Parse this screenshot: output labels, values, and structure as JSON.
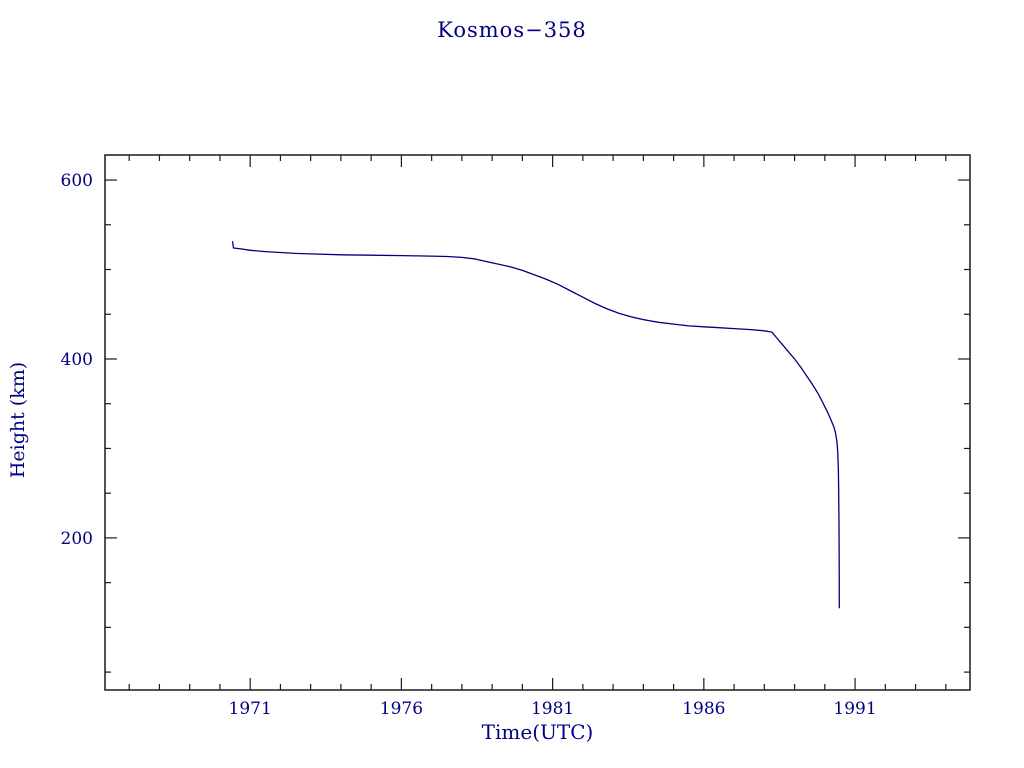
{
  "title": "Kosmos−358",
  "colors": {
    "text": "#000080",
    "curve": "#000080",
    "frame": "#1a1a1a",
    "background": "#ffffff"
  },
  "chart_data": {
    "type": "line",
    "title": "Kosmos−358",
    "xlabel": "Time(UTC)",
    "ylabel": "Height (km)",
    "x_range": [
      1966.2,
      1994.8
    ],
    "y_range": [
      30,
      628
    ],
    "x_major_ticks": [
      1971,
      1976,
      1981,
      1986,
      1991
    ],
    "x_minor_step": 1,
    "y_major_ticks": [
      200,
      400,
      600
    ],
    "y_minor_step": 50,
    "grid": false,
    "legend": false,
    "line_color": "#000080",
    "series": [
      {
        "name": "height_km",
        "points": [
          [
            1970.42,
            531
          ],
          [
            1970.45,
            524
          ],
          [
            1970.7,
            523
          ],
          [
            1971.0,
            521.5
          ],
          [
            1971.5,
            520
          ],
          [
            1972.0,
            519
          ],
          [
            1972.5,
            518
          ],
          [
            1973.0,
            517.5
          ],
          [
            1974.0,
            516.5
          ],
          [
            1975.0,
            516
          ],
          [
            1976.0,
            515.5
          ],
          [
            1977.0,
            515
          ],
          [
            1977.5,
            514.5
          ],
          [
            1978.0,
            513.5
          ],
          [
            1978.4,
            512
          ],
          [
            1978.8,
            509
          ],
          [
            1979.2,
            506
          ],
          [
            1979.6,
            503
          ],
          [
            1980.0,
            499
          ],
          [
            1980.4,
            494
          ],
          [
            1980.8,
            489
          ],
          [
            1981.2,
            483
          ],
          [
            1981.6,
            476
          ],
          [
            1982.0,
            469
          ],
          [
            1982.4,
            462
          ],
          [
            1982.8,
            456
          ],
          [
            1983.2,
            451
          ],
          [
            1983.6,
            447
          ],
          [
            1984.0,
            444
          ],
          [
            1984.5,
            441
          ],
          [
            1985.0,
            439
          ],
          [
            1985.5,
            437
          ],
          [
            1986.0,
            436
          ],
          [
            1986.5,
            435
          ],
          [
            1987.0,
            434
          ],
          [
            1987.5,
            433
          ],
          [
            1988.0,
            431.5
          ],
          [
            1988.25,
            430
          ],
          [
            1988.4,
            424
          ],
          [
            1988.6,
            416
          ],
          [
            1988.8,
            408
          ],
          [
            1989.0,
            400
          ],
          [
            1989.2,
            391
          ],
          [
            1989.4,
            381
          ],
          [
            1989.6,
            371
          ],
          [
            1989.8,
            360
          ],
          [
            1989.95,
            350
          ],
          [
            1990.1,
            340
          ],
          [
            1990.2,
            332
          ],
          [
            1990.3,
            324
          ],
          [
            1990.35,
            318
          ],
          [
            1990.4,
            308
          ],
          [
            1990.43,
            295
          ],
          [
            1990.45,
            275
          ],
          [
            1990.46,
            250
          ],
          [
            1990.47,
            215
          ],
          [
            1990.475,
            170
          ],
          [
            1990.48,
            122
          ]
        ]
      }
    ]
  }
}
